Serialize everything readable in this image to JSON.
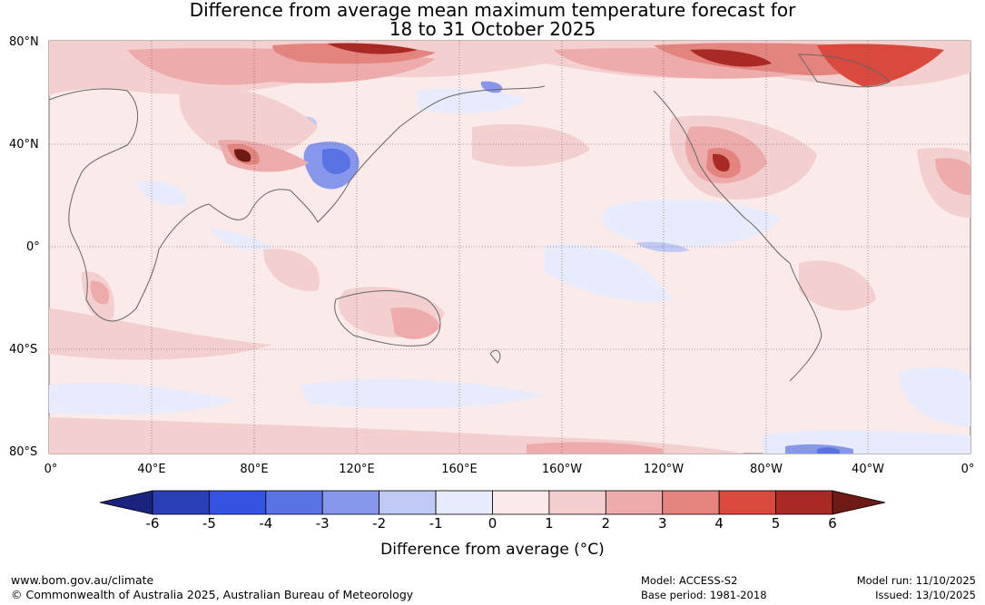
{
  "title_line1": "Difference from average mean maximum temperature forecast for",
  "title_line2": "18 to 31 October 2025",
  "lat_labels": [
    "80°N",
    "40°N",
    "0°",
    "40°S",
    "80°S"
  ],
  "lon_labels": [
    "0°",
    "40°E",
    "80°E",
    "120°E",
    "160°E",
    "160°W",
    "120°W",
    "80°W",
    "40°W",
    "0°"
  ],
  "colorbar": {
    "label": "Difference from average (°C)",
    "ticks": [
      "-6",
      "-5",
      "-4",
      "-3",
      "-2",
      "-1",
      "0",
      "1",
      "2",
      "3",
      "4",
      "5",
      "6"
    ],
    "colors": [
      "#1a237e",
      "#2a3fb5",
      "#3553e0",
      "#5a73e4",
      "#8797ec",
      "#c0c8f4",
      "#e8ebfb",
      "#fbeaea",
      "#f4cfcf",
      "#edabab",
      "#e4847e",
      "#d9493d",
      "#a92a24",
      "#6e1a15"
    ]
  },
  "footer": {
    "website": "www.bom.gov.au/climate",
    "copyright": "© Commonwealth of Australia 2025, Australian Bureau of Meteorology",
    "model": "Model: ACCESS-S2",
    "base_period": "Base period: 1981-2018",
    "model_run": "Model run: 11/10/2025",
    "issued": "Issued: 13/10/2025"
  }
}
